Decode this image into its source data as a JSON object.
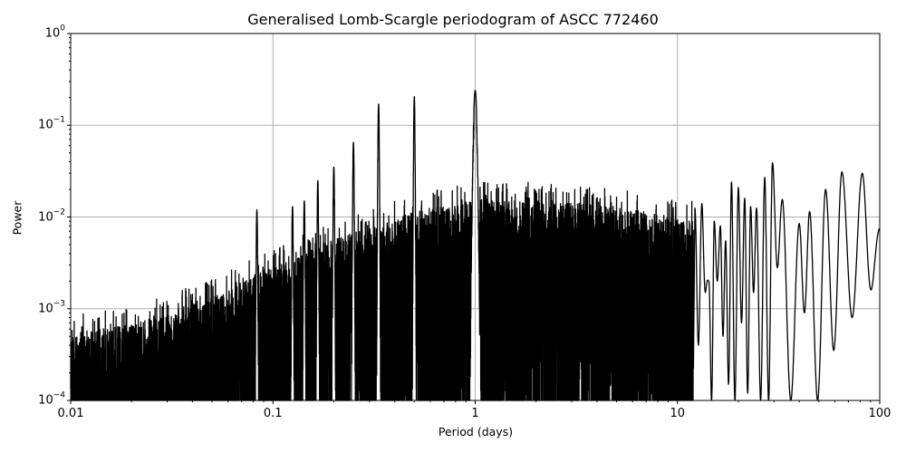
{
  "chart_data": {
    "type": "line",
    "title": "Generalised Lomb-Scargle periodogram of ASCC 772460",
    "xlabel": "Period (days)",
    "ylabel": "Power",
    "xscale": "log",
    "yscale": "log",
    "xlim": [
      0.01,
      100
    ],
    "ylim": [
      0.0001,
      1
    ],
    "grid": true,
    "legend": null,
    "xticks": [
      "0.01",
      "0.1",
      "1",
      "10",
      "100"
    ],
    "yticks": [
      {
        "base": "10",
        "exp": "0"
      },
      {
        "base": "10",
        "exp": "−1"
      },
      {
        "base": "10",
        "exp": "−2"
      },
      {
        "base": "10",
        "exp": "−3"
      },
      {
        "base": "10",
        "exp": "−4"
      }
    ],
    "line_color": "#000000",
    "grid_color": "#b0b0b0",
    "prominent_peaks": [
      {
        "period": 1.0,
        "power": 0.24
      },
      {
        "period": 0.5,
        "power": 0.205
      },
      {
        "period": 0.333,
        "power": 0.17
      },
      {
        "period": 0.25,
        "power": 0.065
      },
      {
        "period": 0.2,
        "power": 0.035
      },
      {
        "period": 0.1667,
        "power": 0.025
      },
      {
        "period": 0.1429,
        "power": 0.015
      },
      {
        "period": 0.125,
        "power": 0.013
      },
      {
        "period": 0.0833,
        "power": 0.012
      },
      {
        "period": 29.5,
        "power": 0.039
      },
      {
        "period": 65,
        "power": 0.031
      },
      {
        "period": 82,
        "power": 0.03
      },
      {
        "period": 27,
        "power": 0.027
      },
      {
        "period": 18.5,
        "power": 0.024
      },
      {
        "period": 54,
        "power": 0.02
      },
      {
        "period": 20,
        "power": 0.021
      },
      {
        "period": 13.2,
        "power": 0.014
      },
      {
        "period": 36,
        "power": 0.012
      },
      {
        "period": 45,
        "power": 0.0115
      },
      {
        "period": 22,
        "power": 0.015
      }
    ],
    "noise_envelope": [
      {
        "period": 0.01,
        "power": 0.0003
      },
      {
        "period": 0.02,
        "power": 0.00035
      },
      {
        "period": 0.05,
        "power": 0.0007
      },
      {
        "period": 0.1,
        "power": 0.0015
      },
      {
        "period": 0.2,
        "power": 0.003
      },
      {
        "period": 0.5,
        "power": 0.006
      },
      {
        "period": 1.0,
        "power": 0.008
      },
      {
        "period": 2.0,
        "power": 0.008
      },
      {
        "period": 5.0,
        "power": 0.007
      },
      {
        "period": 10.0,
        "power": 0.005
      }
    ]
  }
}
